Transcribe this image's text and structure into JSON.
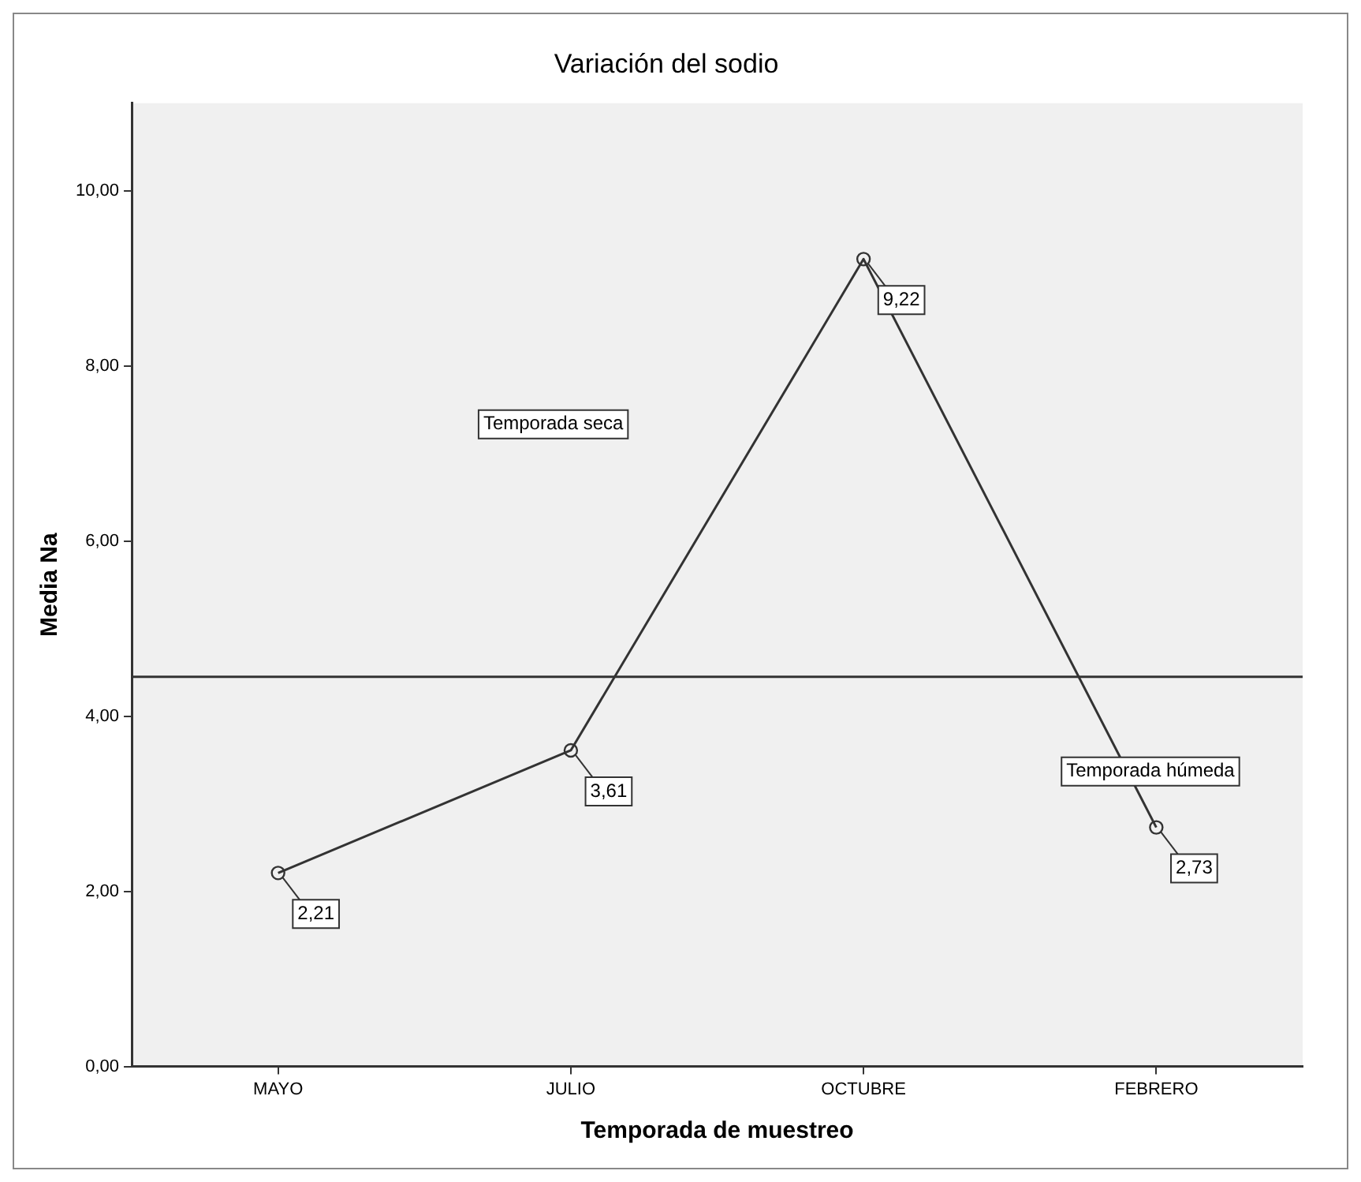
{
  "chart_data": {
    "type": "line",
    "title": "Variación del sodio",
    "xlabel": "Temporada de muestreo",
    "ylabel": "Media Na",
    "categories": [
      "MAYO",
      "JULIO",
      "OCTUBRE",
      "FEBRERO"
    ],
    "series": [
      {
        "color": "#333333",
        "values": [
          2.21,
          3.61,
          9.22,
          2.73
        ],
        "value_labels": [
          "2,21",
          "3,61",
          "9,22",
          "2,73"
        ]
      }
    ],
    "ylim": [
      0,
      11
    ],
    "yticks": [
      {
        "value": 0,
        "label": "0,00"
      },
      {
        "value": 2,
        "label": "2,00"
      },
      {
        "value": 4,
        "label": "4,00"
      },
      {
        "value": 6,
        "label": "6,00"
      },
      {
        "value": 8,
        "label": "8,00"
      },
      {
        "value": 10,
        "label": "10,00"
      }
    ],
    "ref_lines": [
      {
        "axis": "y",
        "value": 4.45,
        "color": "#333333"
      }
    ],
    "annotations": [
      "Temporada seca",
      "Temporada húmeda"
    ],
    "grid": false,
    "legend": false,
    "marker": "circle",
    "line_style": "solid"
  }
}
